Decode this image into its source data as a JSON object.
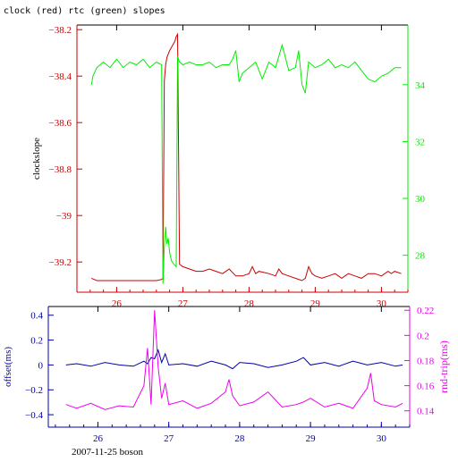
{
  "header": {
    "title": "clock (red) rtc (green) slopes",
    "footer": "2007-11-25 boson"
  },
  "colors": {
    "clock": "#cc0000",
    "rtc": "#00ee00",
    "offset": "#0000aa",
    "rndtrip": "#ee00ee",
    "axis": "#000000"
  },
  "chart_data": [
    {
      "type": "line",
      "title": "clock (red) rtc (green) slopes",
      "xlabel": "",
      "ylabel": "clockslope",
      "ylabel_right": "",
      "xlim": [
        25.4,
        30.4
      ],
      "ylim": [
        -39.33,
        -38.18
      ],
      "ylim_right": [
        26.7,
        36.1
      ],
      "xticks": [
        26,
        27,
        28,
        29,
        30
      ],
      "yticks": [
        -38.2,
        -38.4,
        -38.6,
        -38.8,
        -39,
        -39.2
      ],
      "yticks_right": [
        28,
        30,
        32,
        34
      ],
      "grid": false,
      "series": [
        {
          "name": "clock",
          "axis": "left",
          "x": [
            25.62,
            25.7,
            25.85,
            26.0,
            26.2,
            26.4,
            26.6,
            26.68,
            26.7,
            26.72,
            26.74,
            26.76,
            26.8,
            26.84,
            26.88,
            26.9,
            26.92,
            26.95,
            27.0,
            27.1,
            27.2,
            27.3,
            27.4,
            27.5,
            27.6,
            27.7,
            27.8,
            27.9,
            28.0,
            28.05,
            28.1,
            28.15,
            28.3,
            28.4,
            28.45,
            28.5,
            28.6,
            28.7,
            28.8,
            28.85,
            28.9,
            28.95,
            29.0,
            29.1,
            29.2,
            29.3,
            29.4,
            29.5,
            29.6,
            29.7,
            29.8,
            29.9,
            30.0,
            30.1,
            30.15,
            30.2,
            30.3
          ],
          "y": [
            -39.27,
            -39.28,
            -39.28,
            -39.28,
            -39.28,
            -39.28,
            -39.28,
            -39.275,
            -39.27,
            -38.42,
            -38.35,
            -38.32,
            -38.29,
            -38.27,
            -38.25,
            -38.23,
            -38.22,
            -39.21,
            -39.22,
            -39.23,
            -39.24,
            -39.24,
            -39.23,
            -39.24,
            -39.25,
            -39.23,
            -39.26,
            -39.26,
            -39.25,
            -39.22,
            -39.25,
            -39.24,
            -39.25,
            -39.26,
            -39.23,
            -39.25,
            -39.26,
            -39.27,
            -39.28,
            -39.27,
            -39.22,
            -39.25,
            -39.26,
            -39.27,
            -39.26,
            -39.25,
            -39.27,
            -39.25,
            -39.26,
            -39.27,
            -39.25,
            -39.25,
            -39.26,
            -39.24,
            -39.25,
            -39.24,
            -39.25
          ]
        },
        {
          "name": "rtc",
          "axis": "right",
          "x": [
            25.62,
            25.64,
            25.7,
            25.8,
            25.9,
            26.0,
            26.1,
            26.2,
            26.3,
            26.4,
            26.5,
            26.6,
            26.68,
            26.7,
            26.72,
            26.74,
            26.76,
            26.78,
            26.8,
            26.83,
            26.86,
            26.9,
            26.92,
            26.95,
            27.0,
            27.1,
            27.2,
            27.3,
            27.4,
            27.5,
            27.6,
            27.7,
            27.75,
            27.8,
            27.85,
            27.9,
            28.0,
            28.1,
            28.2,
            28.25,
            28.3,
            28.4,
            28.5,
            28.6,
            28.7,
            28.75,
            28.8,
            28.85,
            28.9,
            29.0,
            29.1,
            29.2,
            29.3,
            29.4,
            29.5,
            29.6,
            29.7,
            29.8,
            29.9,
            30.0,
            30.1,
            30.2,
            30.3
          ],
          "y": [
            34.0,
            34.3,
            34.6,
            34.8,
            34.6,
            34.9,
            34.6,
            34.8,
            34.7,
            34.9,
            34.6,
            34.8,
            34.7,
            27.0,
            28.3,
            29.0,
            28.4,
            28.6,
            28.1,
            27.8,
            27.7,
            27.6,
            35.0,
            34.8,
            34.7,
            34.8,
            34.7,
            34.7,
            34.8,
            34.6,
            34.7,
            34.7,
            34.9,
            35.2,
            34.1,
            34.4,
            34.6,
            34.8,
            34.2,
            34.5,
            34.8,
            34.6,
            35.4,
            34.5,
            34.6,
            35.2,
            34.0,
            33.7,
            34.8,
            34.6,
            34.7,
            34.9,
            34.6,
            34.7,
            34.6,
            34.8,
            34.5,
            34.2,
            34.1,
            34.3,
            34.4,
            34.6,
            34.6
          ]
        }
      ]
    },
    {
      "type": "line",
      "title": "",
      "xlabel": "2007-11-25 boson",
      "ylabel": "offset(ms)",
      "ylabel_right": "rnd-trip(ms)",
      "xlim": [
        25.3,
        30.4
      ],
      "ylim": [
        -0.5,
        0.47
      ],
      "ylim_right": [
        0.127,
        0.223
      ],
      "xticks": [
        26,
        27,
        28,
        29,
        30
      ],
      "yticks": [
        0.4,
        0.2,
        0,
        -0.2,
        -0.4
      ],
      "yticks_right": [
        0.22,
        0.2,
        0.18,
        0.16,
        0.14
      ],
      "yticklabels_right": [
        "0.22",
        "0.2",
        "0.18",
        "0.16",
        "0.14"
      ],
      "grid": false,
      "series": [
        {
          "name": "offset",
          "axis": "left",
          "x": [
            25.55,
            25.7,
            25.9,
            26.1,
            26.3,
            26.5,
            26.65,
            26.7,
            26.75,
            26.8,
            26.85,
            26.9,
            26.95,
            27.0,
            27.2,
            27.4,
            27.6,
            27.8,
            27.9,
            28.0,
            28.2,
            28.4,
            28.6,
            28.8,
            28.9,
            29.0,
            29.2,
            29.4,
            29.6,
            29.8,
            30.0,
            30.2,
            30.3
          ],
          "y": [
            0.0,
            0.01,
            -0.01,
            0.02,
            0.0,
            -0.01,
            0.03,
            0.01,
            0.06,
            0.05,
            0.12,
            0.02,
            0.09,
            0.0,
            0.01,
            -0.01,
            0.03,
            0.0,
            -0.03,
            0.02,
            0.01,
            -0.02,
            0.0,
            0.03,
            0.06,
            0.0,
            0.02,
            -0.01,
            0.03,
            0.0,
            0.02,
            -0.01,
            0.0
          ]
        },
        {
          "name": "rnd-trip",
          "axis": "right",
          "x": [
            25.55,
            25.7,
            25.9,
            26.1,
            26.3,
            26.5,
            26.65,
            26.7,
            26.75,
            26.8,
            26.85,
            26.9,
            26.95,
            27.0,
            27.2,
            27.4,
            27.6,
            27.8,
            27.85,
            27.9,
            28.0,
            28.2,
            28.4,
            28.6,
            28.8,
            28.9,
            29.0,
            29.2,
            29.4,
            29.6,
            29.8,
            29.85,
            29.9,
            30.0,
            30.2,
            30.3
          ],
          "y": [
            0.145,
            0.142,
            0.146,
            0.141,
            0.144,
            0.143,
            0.16,
            0.19,
            0.145,
            0.22,
            0.175,
            0.15,
            0.162,
            0.145,
            0.148,
            0.142,
            0.146,
            0.155,
            0.165,
            0.152,
            0.144,
            0.147,
            0.155,
            0.143,
            0.145,
            0.147,
            0.15,
            0.143,
            0.146,
            0.142,
            0.158,
            0.17,
            0.148,
            0.145,
            0.143,
            0.146
          ]
        }
      ]
    }
  ]
}
